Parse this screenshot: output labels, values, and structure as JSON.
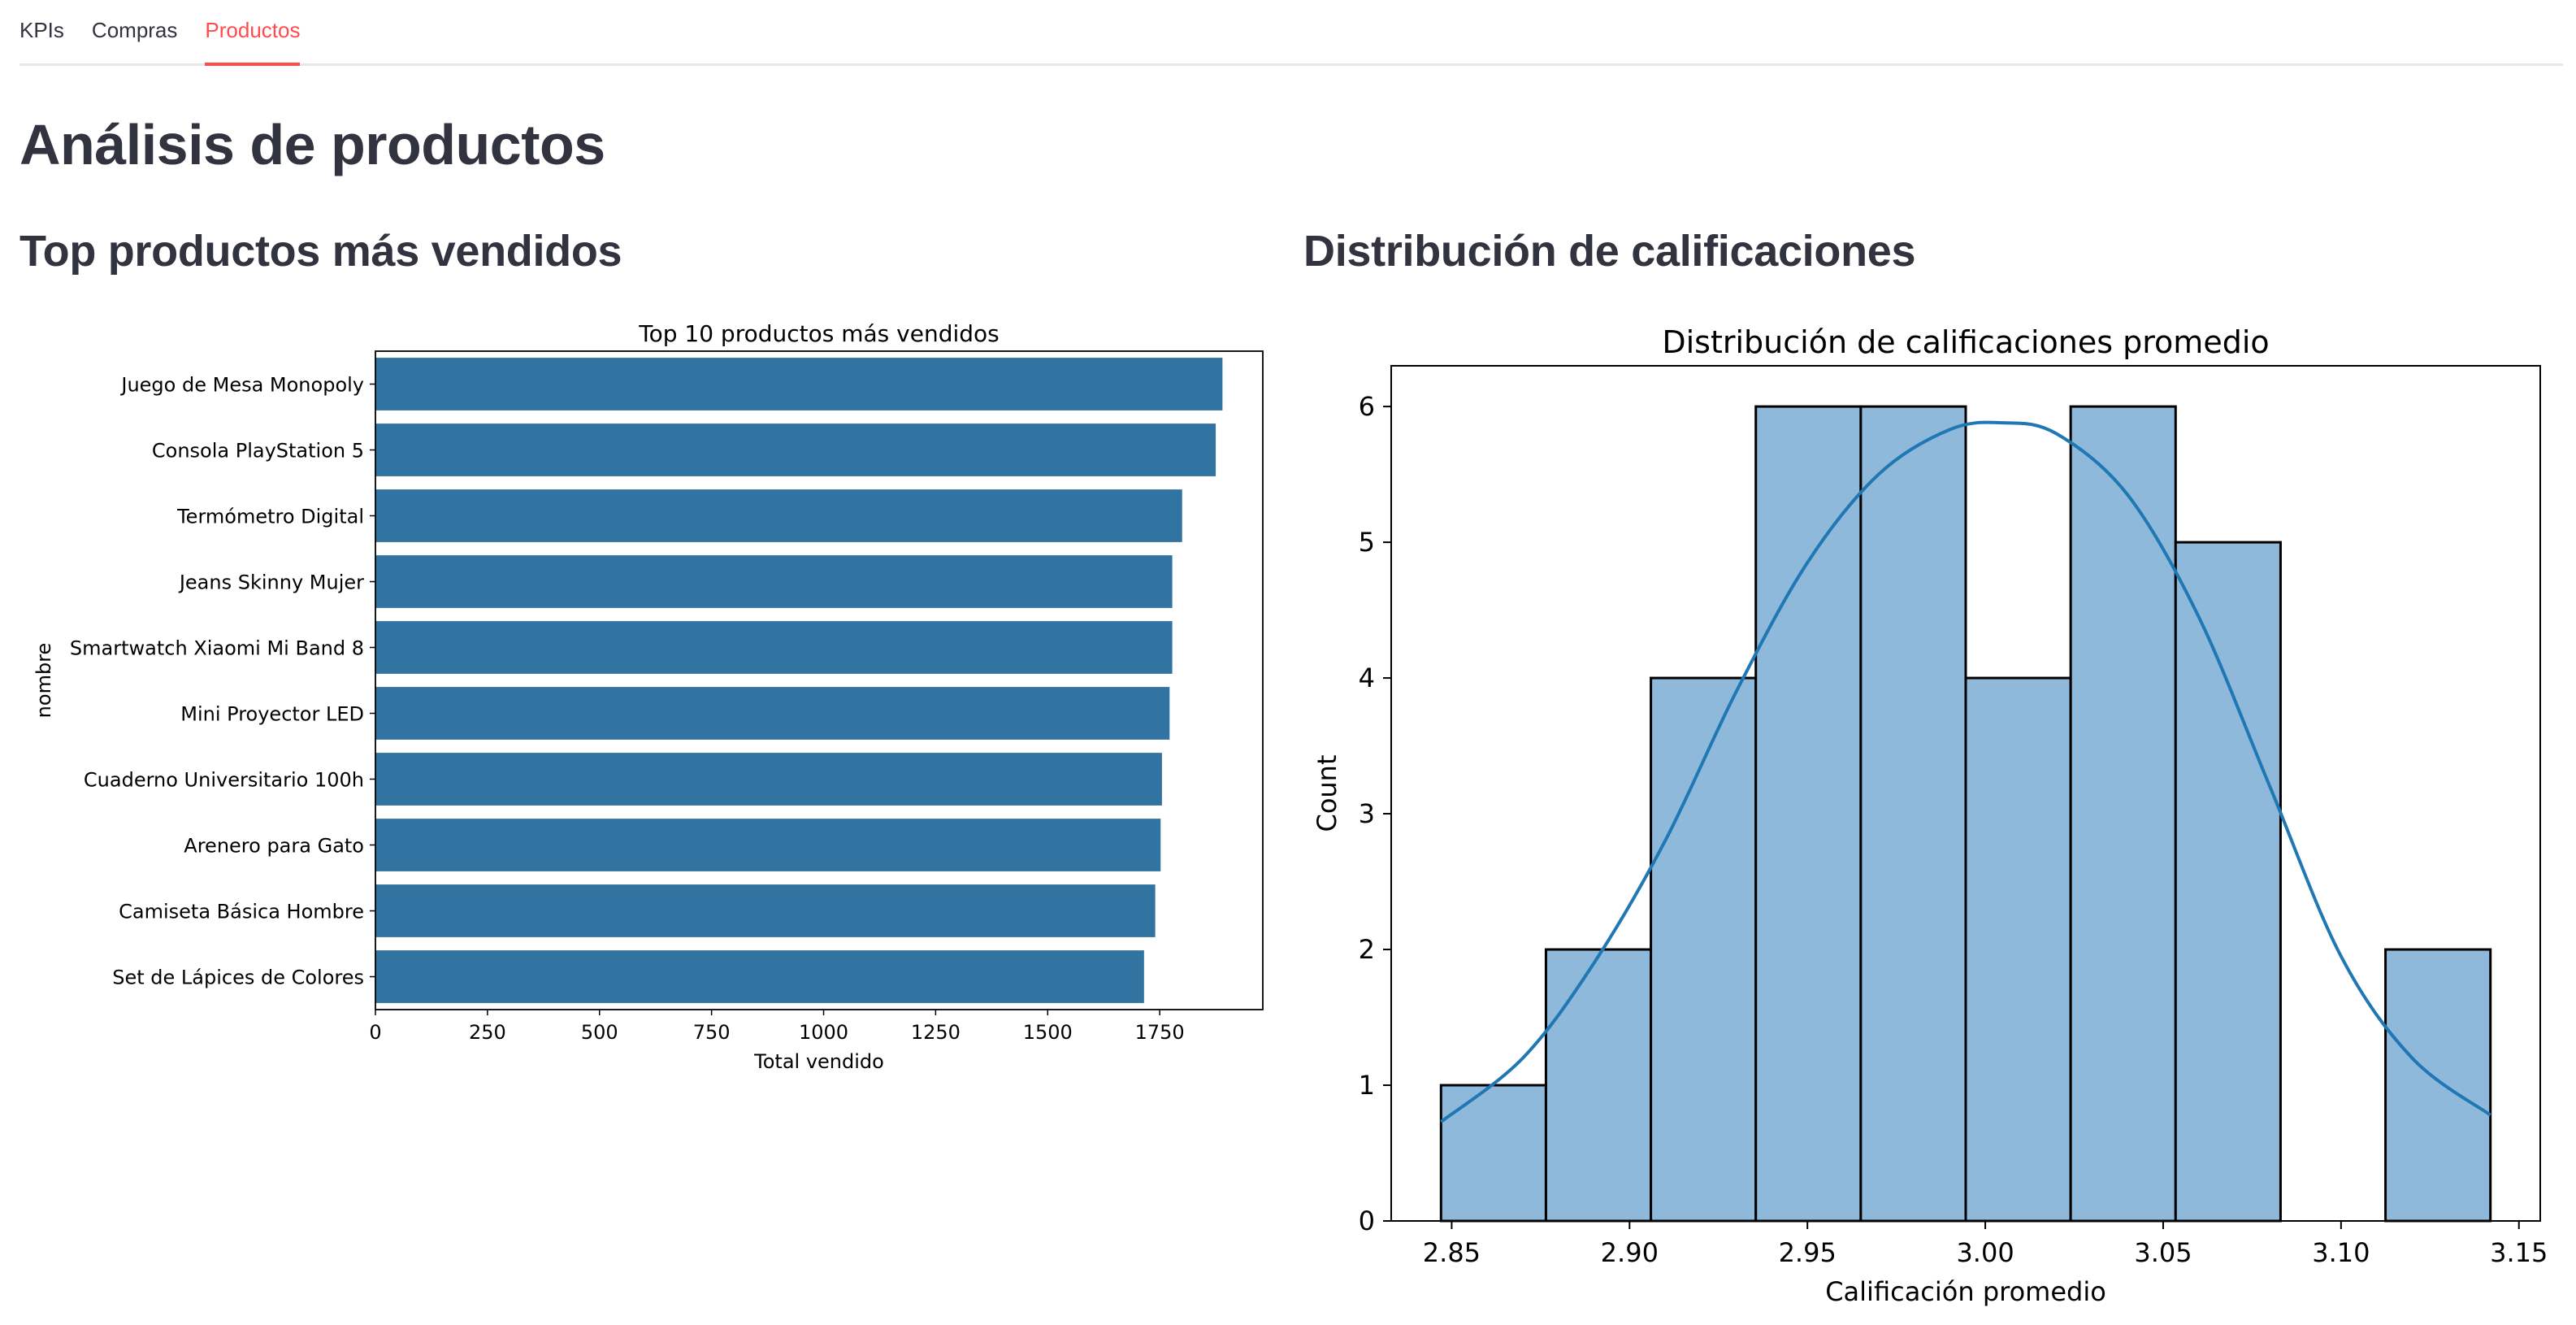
{
  "tabs": [
    {
      "label": "KPIs",
      "active": false
    },
    {
      "label": "Compras",
      "active": false
    },
    {
      "label": "Productos",
      "active": true
    }
  ],
  "page_title": "Análisis de productos",
  "sections": {
    "left_title": "Top productos más vendidos",
    "right_title": "Distribución de calificaciones"
  },
  "colors": {
    "accent": "#ff4b4b",
    "bar": "#3274a1",
    "hist_fill": "#8fb9da",
    "kde_line": "#1f77b4"
  },
  "chart_data": [
    {
      "type": "bar",
      "orientation": "horizontal",
      "title": "Top 10 productos más vendidos",
      "xlabel": "Total vendido",
      "ylabel": "nombre",
      "categories": [
        "Juego de Mesa Monopoly",
        "Consola PlayStation 5",
        "Termómetro Digital",
        "Jeans Skinny Mujer",
        "Smartwatch Xiaomi Mi Band 8",
        "Mini Proyector LED",
        "Cuaderno Universitario 100h",
        "Arenero para Gato",
        "Camiseta Básica Hombre",
        "Set de Lápices de Colores"
      ],
      "values": [
        1890,
        1875,
        1800,
        1778,
        1778,
        1772,
        1755,
        1752,
        1740,
        1715
      ],
      "xlim": [
        0,
        1980
      ],
      "xticks": [
        0,
        250,
        500,
        750,
        1000,
        1250,
        1500,
        1750
      ],
      "grid": false
    },
    {
      "type": "histogram",
      "title": "Distribución de calificaciones promedio",
      "xlabel": "Calificación promedio",
      "ylabel": "Count",
      "bins": [
        {
          "start": 2.847,
          "end": 2.8765,
          "count": 1
        },
        {
          "start": 2.8765,
          "end": 2.906,
          "count": 2
        },
        {
          "start": 2.906,
          "end": 2.9355,
          "count": 4
        },
        {
          "start": 2.9355,
          "end": 2.965,
          "count": 6
        },
        {
          "start": 2.965,
          "end": 2.9945,
          "count": 6
        },
        {
          "start": 2.9945,
          "end": 3.024,
          "count": 4
        },
        {
          "start": 3.024,
          "end": 3.0535,
          "count": 6
        },
        {
          "start": 3.0535,
          "end": 3.083,
          "count": 5
        },
        {
          "start": 3.083,
          "end": 3.1125,
          "count": 0
        },
        {
          "start": 3.1125,
          "end": 3.142,
          "count": 2
        }
      ],
      "kde": {
        "x": [
          2.847,
          2.87,
          2.89,
          2.91,
          2.93,
          2.95,
          2.97,
          2.99,
          3.005,
          3.02,
          3.04,
          3.06,
          3.08,
          3.1,
          3.12,
          3.142
        ],
        "y": [
          0.73,
          1.2,
          1.9,
          2.8,
          3.9,
          4.85,
          5.5,
          5.83,
          5.88,
          5.8,
          5.35,
          4.45,
          3.2,
          1.95,
          1.2,
          0.78
        ]
      },
      "xlim": [
        2.833,
        3.156
      ],
      "ylim": [
        0,
        6.3
      ],
      "xticks": [
        "2.85",
        "2.90",
        "2.95",
        "3.00",
        "3.05",
        "3.10",
        "3.15"
      ],
      "yticks": [
        "0",
        "1",
        "2",
        "3",
        "4",
        "5",
        "6"
      ]
    }
  ]
}
